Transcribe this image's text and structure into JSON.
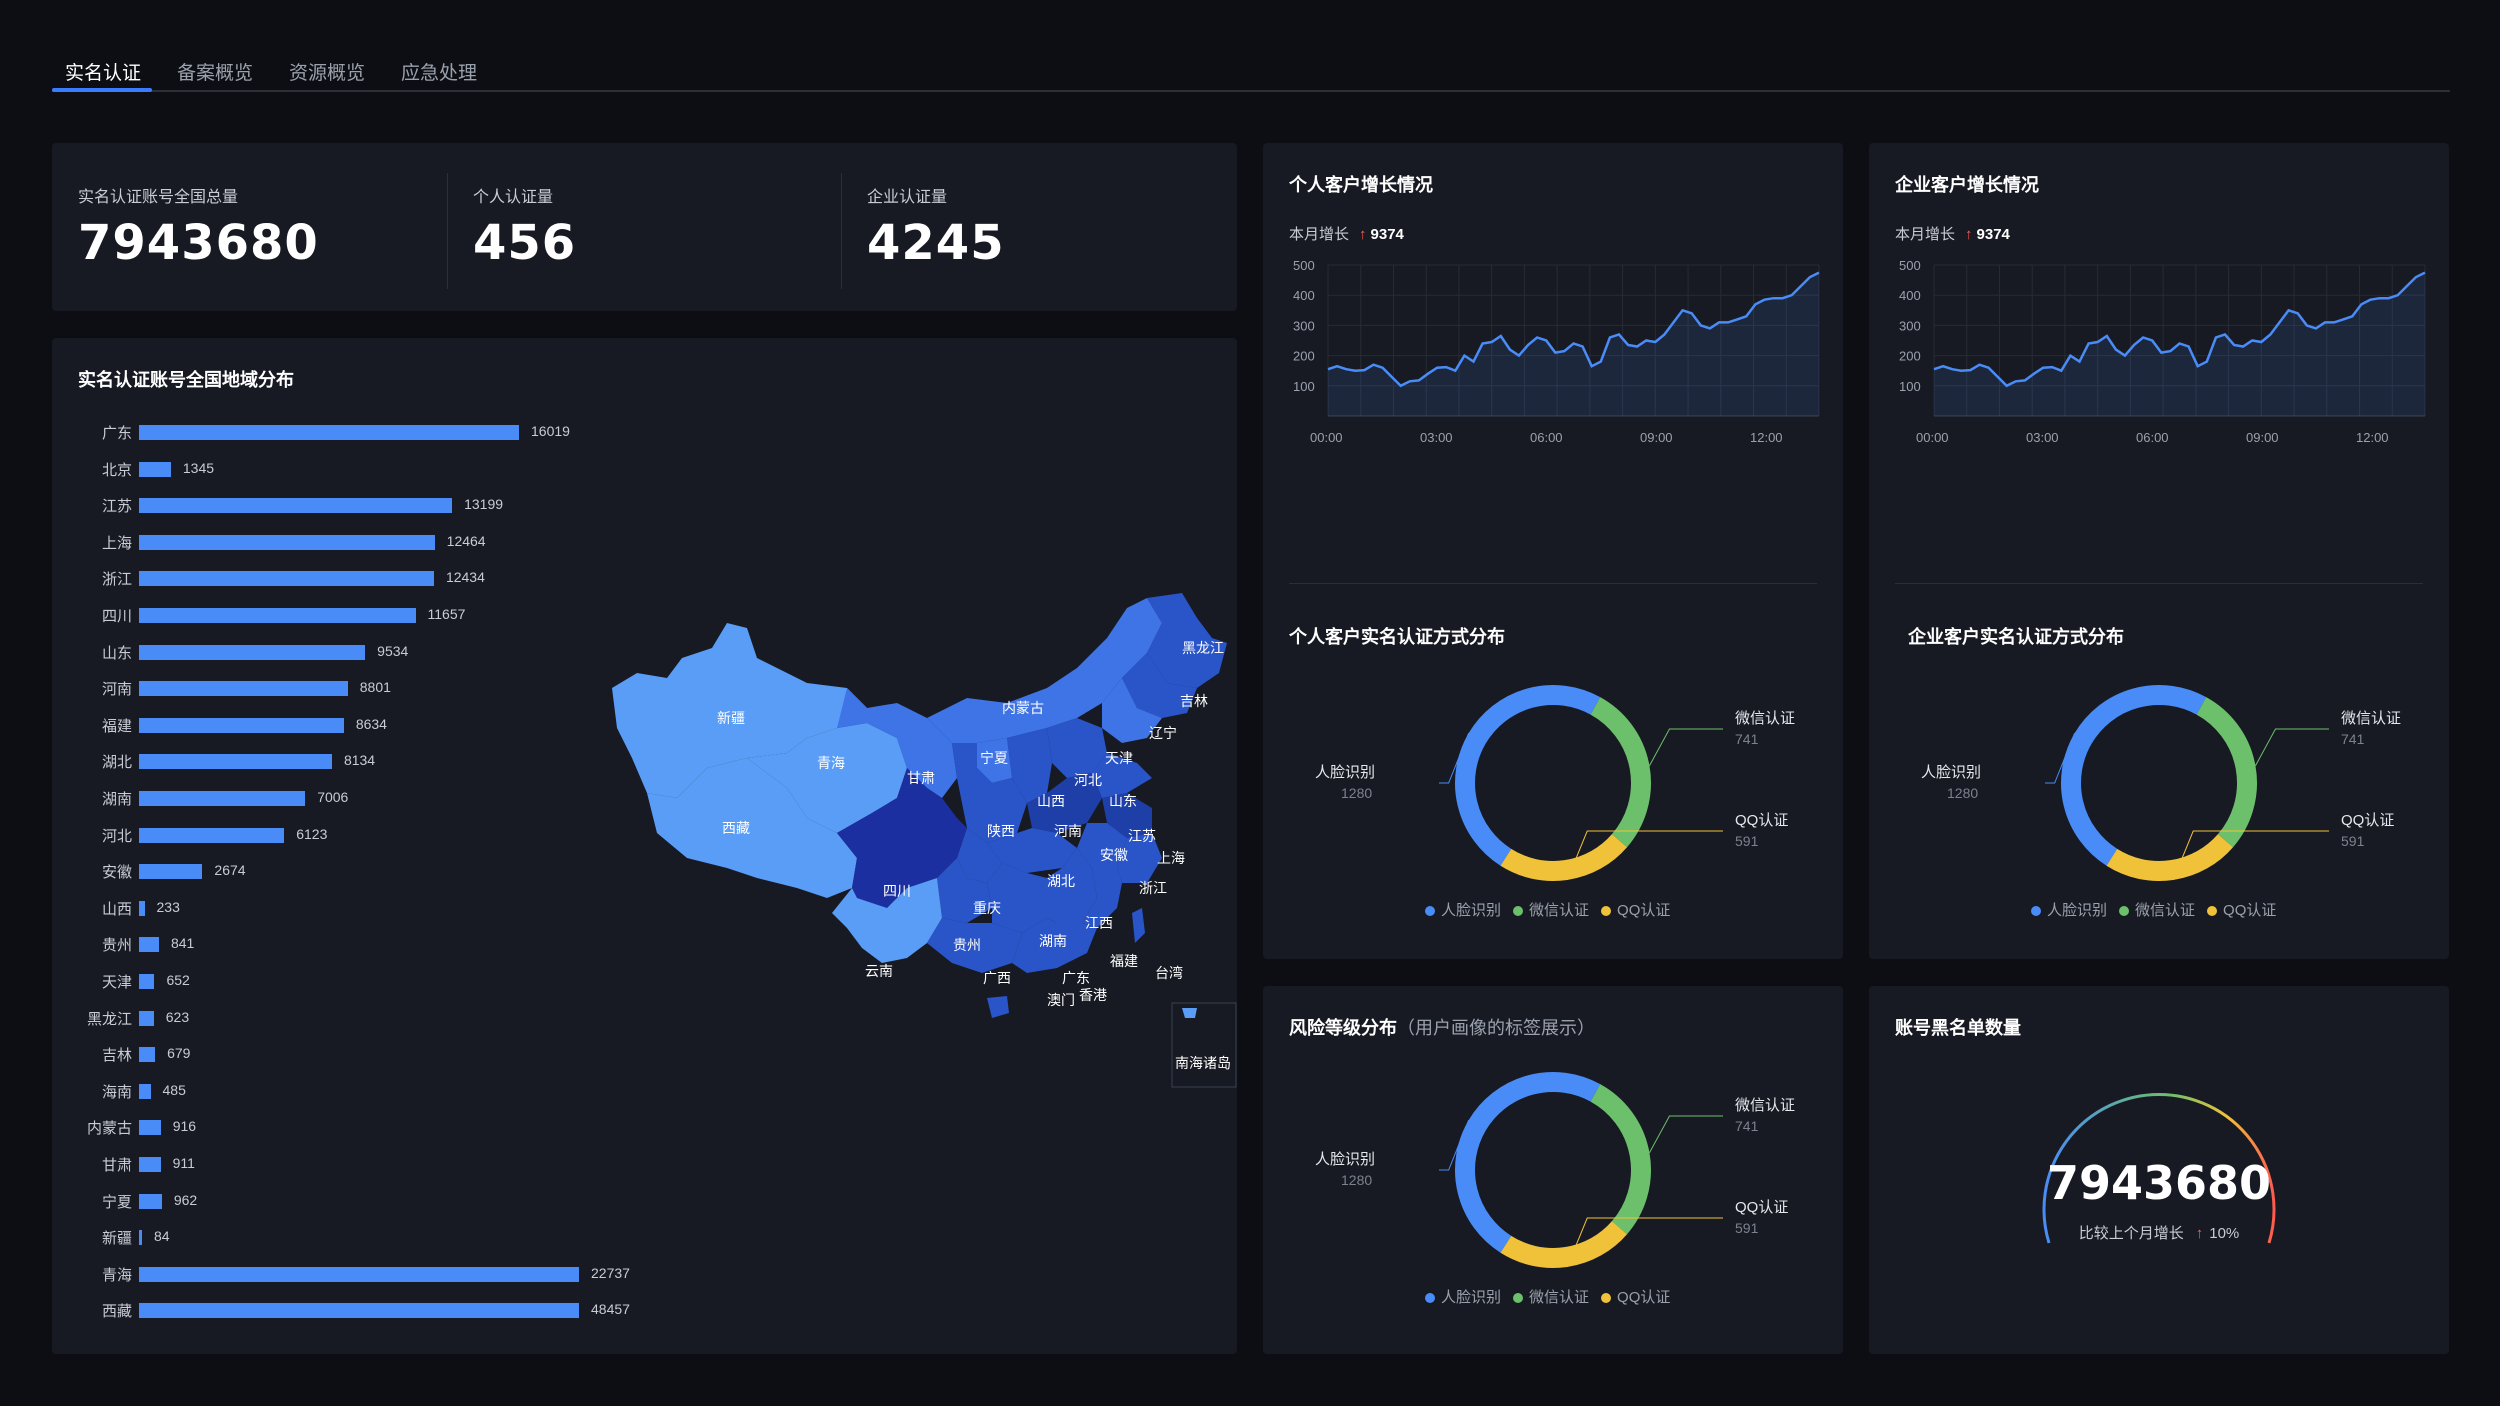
{
  "tabs": [
    {
      "label": "实名认证",
      "active": true
    },
    {
      "label": "备案概览",
      "active": false
    },
    {
      "label": "资源概览",
      "active": false
    },
    {
      "label": "应急处理",
      "active": false
    }
  ],
  "stats": [
    {
      "label": "实名认证账号全国总量",
      "value": "7943680"
    },
    {
      "label": "个人认证量",
      "value": "456"
    },
    {
      "label": "企业认证量",
      "value": "4245"
    }
  ],
  "region": {
    "title": "实名认证账号全国地域分布",
    "chart_data": {
      "type": "bar",
      "categories": [
        "广东",
        "北京",
        "江苏",
        "上海",
        "浙江",
        "四川",
        "山东",
        "河南",
        "福建",
        "湖北",
        "湖南",
        "河北",
        "安徽",
        "山西",
        "贵州",
        "天津",
        "黑龙江",
        "吉林",
        "海南",
        "内蒙古",
        "甘肃",
        "宁夏",
        "新疆",
        "青海",
        "西藏"
      ],
      "values": [
        16019,
        1345,
        13199,
        12464,
        12434,
        11657,
        9534,
        8801,
        8634,
        8134,
        7006,
        6123,
        2674,
        233,
        841,
        652,
        623,
        679,
        485,
        916,
        911,
        962,
        84,
        22737,
        48457
      ]
    },
    "map": {
      "provinces": [
        "新疆",
        "西藏",
        "青海",
        "甘肃",
        "内蒙古",
        "黑龙江",
        "吉林",
        "辽宁",
        "天津",
        "河北",
        "山东",
        "宁夏",
        "山西",
        "陕西",
        "河南",
        "江苏",
        "上海",
        "安徽",
        "四川",
        "重庆",
        "湖北",
        "浙江",
        "贵州",
        "湖南",
        "江西",
        "云南",
        "福建",
        "广西",
        "广东",
        "台湾",
        "澳门",
        "香港"
      ],
      "inset_label": "南海诸岛"
    }
  },
  "personal_growth": {
    "title": "个人客户增长情况",
    "growth_label": "本月增长",
    "growth_arrow": "↑",
    "growth_value": "9374",
    "chart_data": {
      "type": "area",
      "ylim": [
        0,
        500
      ],
      "yticks": [
        100,
        200,
        300,
        400,
        500
      ],
      "xticks": [
        "00:00",
        "03:00",
        "06:00",
        "09:00",
        "12:00"
      ],
      "values": [
        155,
        165,
        155,
        150,
        152,
        170,
        160,
        130,
        100,
        115,
        118,
        140,
        160,
        162,
        150,
        200,
        180,
        240,
        245,
        265,
        220,
        200,
        235,
        260,
        250,
        210,
        215,
        240,
        230,
        165,
        180,
        260,
        270,
        235,
        230,
        250,
        245,
        270,
        310,
        350,
        340,
        300,
        290,
        310,
        310,
        320,
        330,
        370,
        385,
        390,
        390,
        400,
        430,
        460,
        475
      ]
    }
  },
  "enterprise_growth": {
    "title": "企业客户增长情况",
    "growth_label": "本月增长",
    "growth_arrow": "↑",
    "growth_value": "9374",
    "chart_data": {
      "type": "area",
      "ylim": [
        0,
        500
      ],
      "yticks": [
        100,
        200,
        300,
        400,
        500
      ],
      "xticks": [
        "00:00",
        "03:00",
        "06:00",
        "09:00",
        "12:00"
      ],
      "values": [
        155,
        165,
        155,
        150,
        152,
        170,
        160,
        130,
        100,
        115,
        118,
        140,
        160,
        162,
        150,
        200,
        180,
        240,
        245,
        265,
        220,
        200,
        235,
        260,
        250,
        210,
        215,
        240,
        230,
        165,
        180,
        260,
        270,
        235,
        230,
        250,
        245,
        270,
        310,
        350,
        340,
        300,
        290,
        310,
        310,
        320,
        330,
        370,
        385,
        390,
        390,
        400,
        430,
        460,
        475
      ]
    }
  },
  "personal_method": {
    "title": "个人客户实名认证方式分布",
    "chart_data": {
      "type": "pie",
      "slices": [
        {
          "name": "人脸识别",
          "value": 1280,
          "color": "#4a8cf7"
        },
        {
          "name": "微信认证",
          "value": 741,
          "color": "#6cc06b"
        },
        {
          "name": "QQ认证",
          "value": 591,
          "color": "#f0c23a"
        }
      ]
    },
    "legend": [
      "人脸识别",
      "微信认证",
      "QQ认证"
    ]
  },
  "enterprise_method": {
    "title": "企业客户实名认证方式分布",
    "chart_data": {
      "type": "pie",
      "slices": [
        {
          "name": "人脸识别",
          "value": 1280,
          "color": "#4a8cf7"
        },
        {
          "name": "微信认证",
          "value": 741,
          "color": "#6cc06b"
        },
        {
          "name": "QQ认证",
          "value": 591,
          "color": "#f0c23a"
        }
      ]
    },
    "legend": [
      "人脸识别",
      "微信认证",
      "QQ认证"
    ]
  },
  "risk": {
    "title": "风险等级分布",
    "subtitle": "（用户画像的标签展示）",
    "chart_data": {
      "type": "pie",
      "slices": [
        {
          "name": "人脸识别",
          "value": 1280,
          "color": "#4a8cf7"
        },
        {
          "name": "微信认证",
          "value": 741,
          "color": "#6cc06b"
        },
        {
          "name": "QQ认证",
          "value": 591,
          "color": "#f0c23a"
        }
      ]
    },
    "legend": [
      "人脸识别",
      "微信认证",
      "QQ认证"
    ]
  },
  "blacklist": {
    "title": "账号黑名单数量",
    "value": "7943680",
    "compare_label": "比较上个月增长",
    "compare_arrow": "↑",
    "compare_value": "10%"
  },
  "colors": {
    "accent": "#3b7cff",
    "bar": "#4a8cf7",
    "card": "#171a22",
    "background": "#0c0e13"
  }
}
